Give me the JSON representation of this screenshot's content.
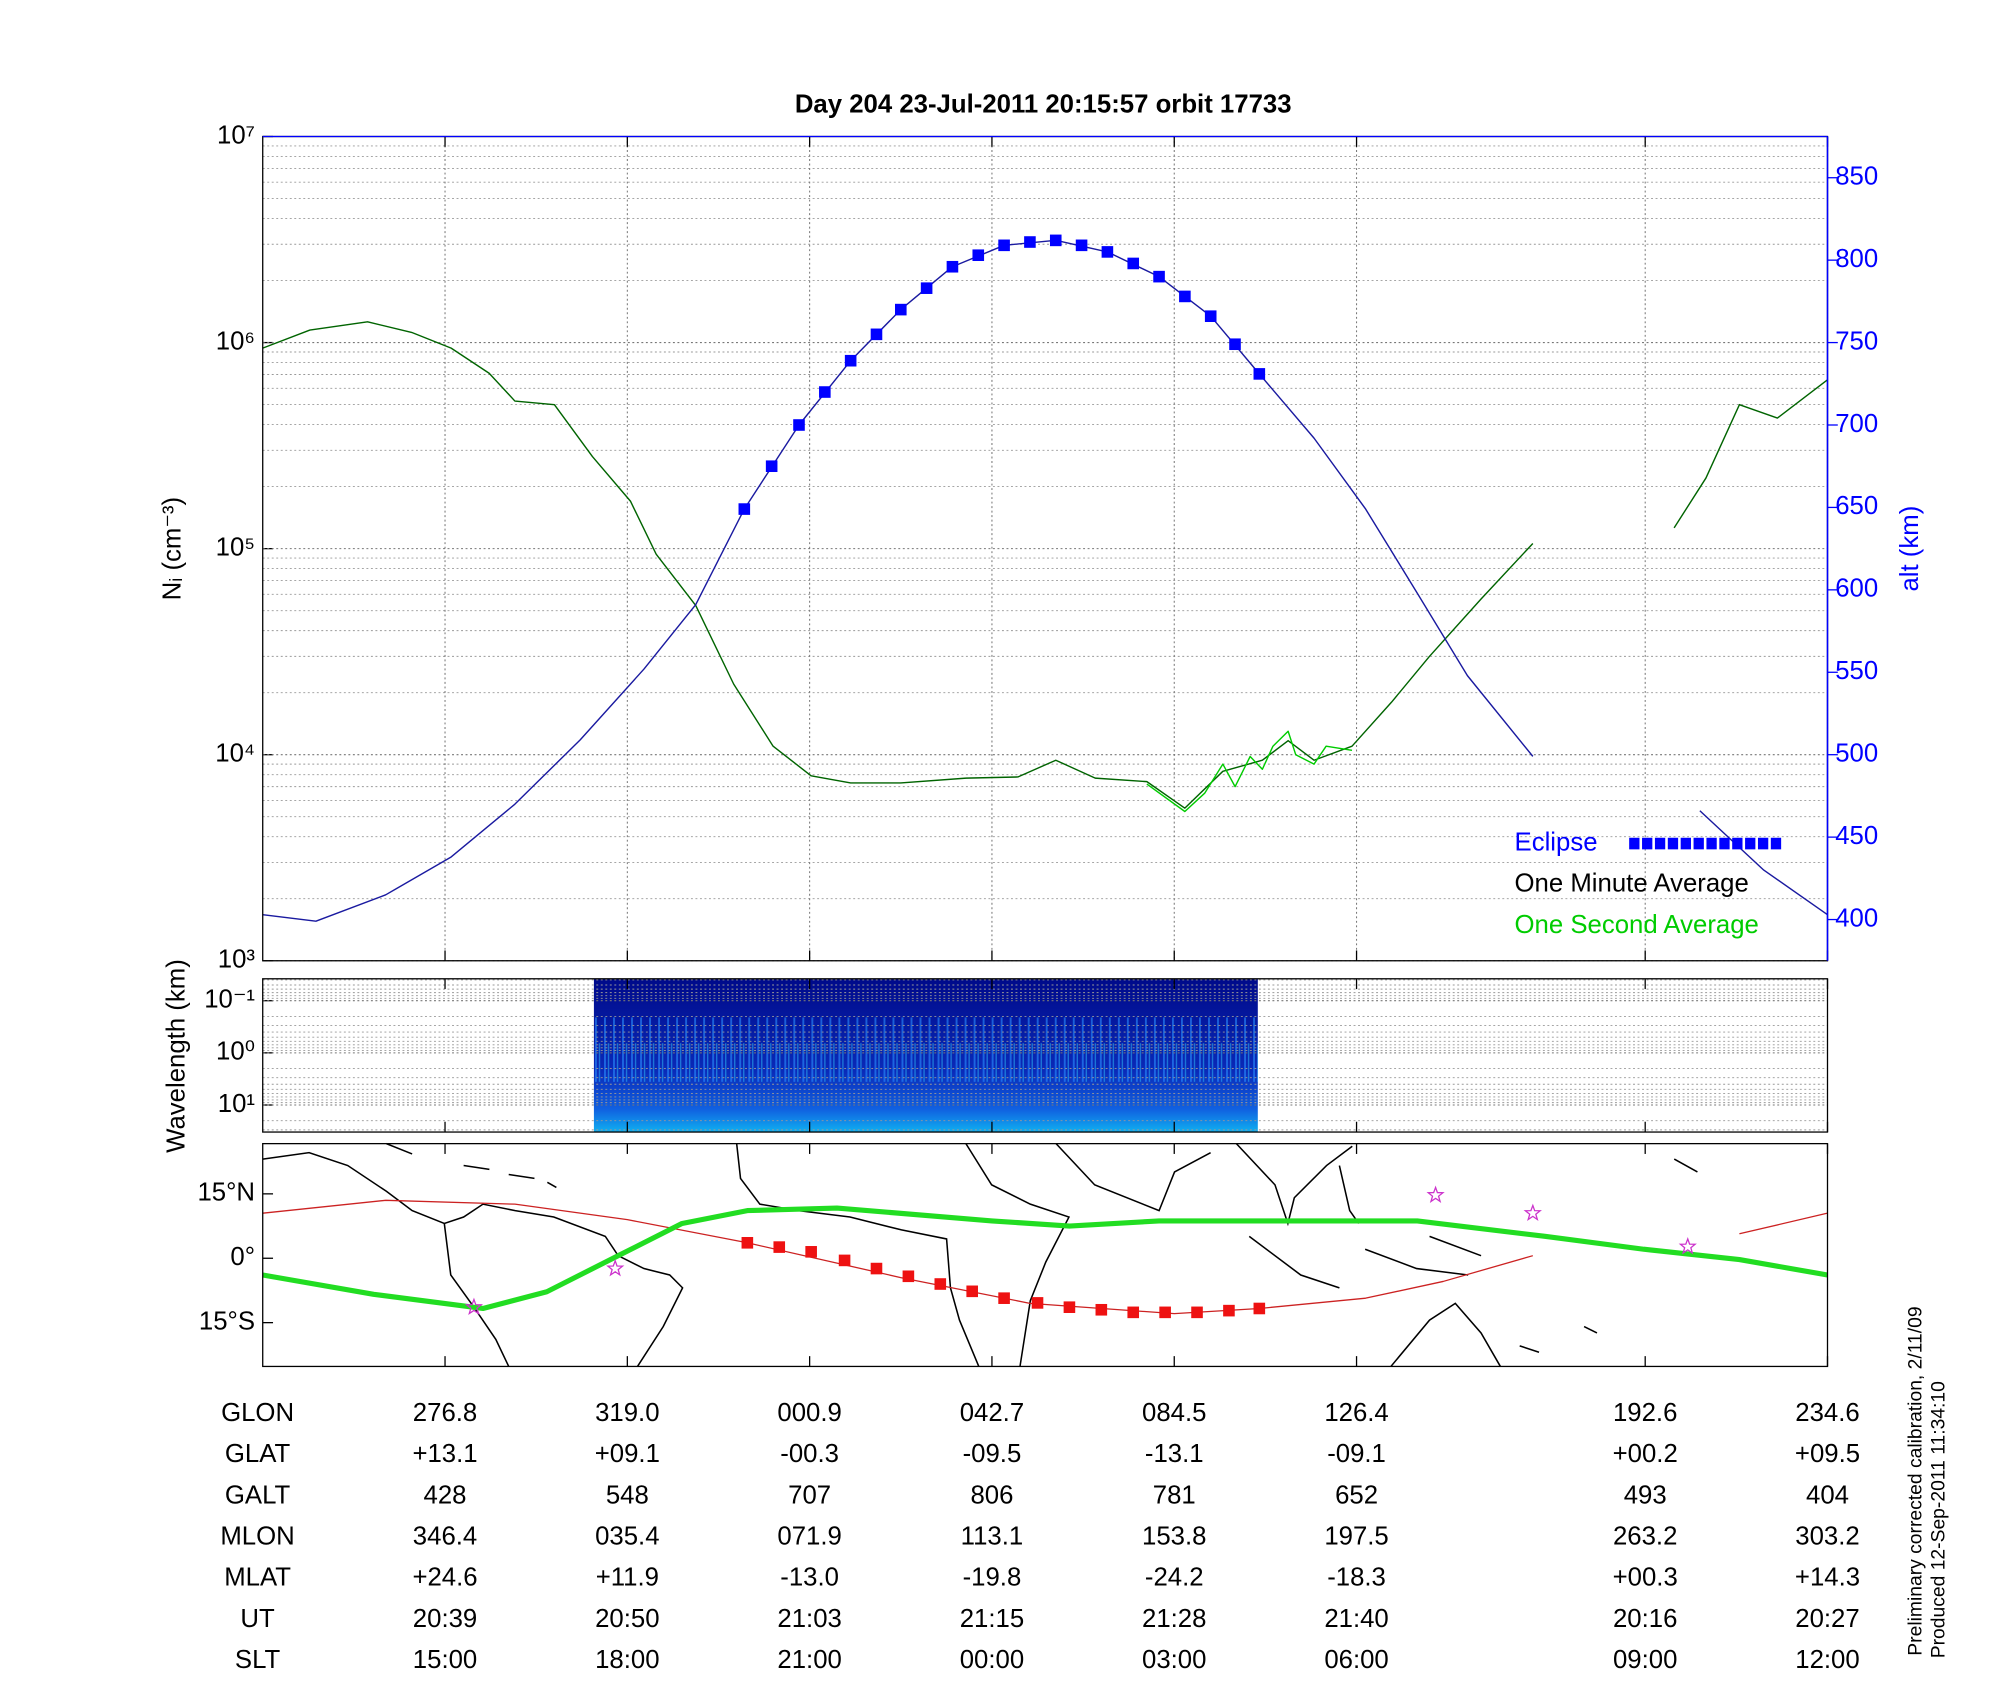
{
  "chart_data": [
    {
      "type": "line",
      "title": "Day 204  23-Jul-2011 20:15:57   orbit 17733",
      "ylabel": "Nᵢ (cm⁻³)",
      "y2label": "alt (km)",
      "xlim": [
        27,
        130
      ],
      "xticks": [
        39,
        51,
        63,
        75,
        87,
        99,
        118,
        130
      ],
      "ylog": true,
      "ylim": [
        1000,
        10000000
      ],
      "yticks": [
        {
          "value": 1000,
          "label": "10³"
        },
        {
          "value": 10000,
          "label": "10⁴"
        },
        {
          "value": 100000,
          "label": "10⁵"
        },
        {
          "value": 1000000,
          "label": "10⁶"
        },
        {
          "value": 10000000,
          "label": "10⁷"
        }
      ],
      "y2lim": [
        375,
        875
      ],
      "y2ticks": [
        400,
        450,
        500,
        550,
        600,
        650,
        700,
        750,
        800,
        850
      ],
      "grid": true,
      "legend": "lower right",
      "series": [
        {
          "name": "Eclipse",
          "color": "#0000ff",
          "axis": "y2",
          "marker": "square",
          "x": [
            58.7,
            60.5,
            62.3,
            64.0,
            65.7,
            67.4,
            69.0,
            70.7,
            72.4,
            74.1,
            75.8,
            77.5,
            79.2,
            80.9,
            82.6,
            84.3,
            86.0,
            87.7,
            89.4,
            91.0,
            92.6
          ],
          "values": [
            649,
            675,
            700,
            720,
            739,
            755,
            770,
            783,
            796,
            803,
            809,
            811,
            812,
            809,
            805,
            798,
            790,
            778,
            766,
            749,
            731
          ]
        },
        {
          "name": "One Minute Average",
          "color": "#006400",
          "legend_color": "#000000",
          "x": [
            27.0,
            30.1,
            33.9,
            36.8,
            39.4,
            41.9,
            43.6,
            46.2,
            48.7,
            51.2,
            52.9,
            55.5,
            58.0,
            60.6,
            63.1,
            65.7,
            69.0,
            73.3,
            76.7,
            79.2,
            81.8,
            85.2,
            87.7,
            90.2,
            92.8,
            94.5,
            96.2,
            98.7,
            101.3,
            103.8,
            107.2,
            110.6,
            117.9,
            119.9,
            122.0,
            124.2,
            126.7,
            130.0
          ],
          "values": [
            940000,
            1150000,
            1260000,
            1120000,
            940000,
            710000,
            520000,
            500000,
            280000,
            170000,
            94000,
            53000,
            22000,
            11000,
            7900,
            7300,
            7300,
            7700,
            7800,
            9400,
            7700,
            7400,
            5500,
            8300,
            9400,
            11700,
            9400,
            11000,
            18000,
            30000,
            57000,
            106000,
            null,
            126000,
            220000,
            500000,
            430000,
            660000
          ]
        },
        {
          "name": "One Second Average",
          "color": "#00cc00",
          "x": [
            85.2,
            87.7,
            89.0,
            90.2,
            91.0,
            92.0,
            92.8,
            93.5,
            94.5,
            95.0,
            96.2,
            97.0,
            98.7
          ],
          "values": [
            7200,
            5300,
            6500,
            9000,
            7000,
            9800,
            8500,
            11000,
            13000,
            10000,
            9000,
            11000,
            10500
          ]
        },
        {
          "color": "#1a1aa0",
          "axis": "y2",
          "x": [
            27.0,
            30.5,
            35.1,
            39.4,
            43.6,
            47.9,
            52.1,
            55.5,
            58.7,
            62.3,
            65.7,
            69.0,
            72.4,
            75.8,
            79.2,
            82.6,
            86.0,
            89.4,
            92.6,
            96.2,
            99.6,
            103.0,
            106.3,
            110.6,
            117.9,
            121.6,
            125.8,
            130.0
          ],
          "values": [
            403,
            399,
            415,
            438,
            470,
            509,
            552,
            591,
            649,
            700,
            739,
            770,
            796,
            809,
            812,
            805,
            790,
            766,
            731,
            692,
            649,
            598,
            548,
            499,
            null,
            466,
            430,
            403
          ]
        }
      ]
    },
    {
      "type": "image",
      "ylabel": "Wavelength (km)",
      "xlim": [
        27,
        130
      ],
      "xticks": [
        39,
        51,
        63,
        75,
        87,
        99,
        118,
        130
      ],
      "ylog": true,
      "yreverse": true,
      "ylim": [
        0.038,
        33
      ],
      "yticks": [
        {
          "value": 0.1,
          "label": "10⁻¹"
        },
        {
          "value": 1,
          "label": "10⁰"
        },
        {
          "value": 10,
          "label": "10¹"
        }
      ],
      "grid": true,
      "image_x": [
        48.8,
        92.5
      ]
    },
    {
      "type": "map",
      "xlim": [
        27,
        130
      ],
      "xticks": [
        39,
        51,
        63,
        75,
        87,
        99,
        118,
        130
      ],
      "ylim": [
        -25.2,
        26.7
      ],
      "yticks": [
        {
          "value": 15,
          "label": "15°N"
        },
        {
          "value": 0,
          "label": "0°"
        },
        {
          "value": -15,
          "label": "15°S"
        }
      ],
      "series": [
        {
          "color": "#cc2222",
          "width": 1,
          "x": [
            27.0,
            35.1,
            43.6,
            51.0,
            58.9,
            69.0,
            77.5,
            87.0,
            92.6,
            99.6,
            104.7,
            110.6,
            117.9,
            124.2,
            130.0
          ],
          "values": [
            10.5,
            13.5,
            12.6,
            9.0,
            3.6,
            -4.5,
            -10.5,
            -12.9,
            -11.7,
            -9.3,
            -5.4,
            0.6,
            null,
            5.7,
            10.5
          ]
        },
        {
          "color": "#22dd22",
          "width": 4,
          "x": [
            27.0,
            34.3,
            41.5,
            45.7,
            50.4,
            54.6,
            58.9,
            64.8,
            75.0,
            80.1,
            86.0,
            94.5,
            103.0,
            111.4,
            117.9,
            124.2,
            130.0
          ],
          "values": [
            -3.9,
            -8.4,
            -11.7,
            -7.8,
            0.6,
            8.1,
            11.1,
            11.7,
            8.7,
            7.5,
            8.7,
            8.7,
            8.7,
            5.1,
            2.1,
            -0.3,
            -3.9
          ]
        },
        {
          "color": "#ee1111",
          "marker": "square",
          "x": [
            58.9,
            61.0,
            63.1,
            65.3,
            67.4,
            69.5,
            71.6,
            73.7,
            75.8,
            78.0,
            80.1,
            82.2,
            84.3,
            86.4,
            88.5,
            90.6,
            92.6
          ],
          "values": [
            3.6,
            2.6,
            1.5,
            -0.5,
            -2.4,
            -4.2,
            -6.0,
            -7.7,
            -9.3,
            -10.4,
            -11.4,
            -12.0,
            -12.6,
            -12.6,
            -12.6,
            -12.2,
            -11.7
          ]
        },
        {
          "color": "#cc33cc",
          "marker": "star",
          "x": [
            40.9,
            50.2,
            104.2,
            110.6,
            120.8
          ],
          "values": [
            -11.4,
            -2.4,
            14.7,
            10.5,
            2.7
          ]
        }
      ]
    }
  ],
  "table": {
    "rows": [
      [
        "GLON",
        "276.8",
        "319.0",
        "000.9",
        "042.7",
        "084.5",
        "126.4",
        "192.6",
        "234.6"
      ],
      [
        "GLAT",
        "+13.1",
        "+09.1",
        "-00.3",
        "-09.5",
        "-13.1",
        "-09.1",
        "+00.2",
        "+09.5"
      ],
      [
        "GALT",
        "428",
        "548",
        "707",
        "806",
        "781",
        "652",
        "493",
        "404"
      ],
      [
        "MLON",
        "346.4",
        "035.4",
        "071.9",
        "113.1",
        "153.8",
        "197.5",
        "263.2",
        "303.2"
      ],
      [
        "MLAT",
        "+24.6",
        "+11.9",
        "-13.0",
        "-19.8",
        "-24.2",
        "-18.3",
        "+00.3",
        "+14.3"
      ],
      [
        "UT",
        "20:39",
        "20:50",
        "21:03",
        "21:15",
        "21:28",
        "21:40",
        "20:16",
        "20:27"
      ],
      [
        "SLT",
        "15:00",
        "18:00",
        "21:00",
        "00:00",
        "03:00",
        "06:00",
        "09:00",
        "12:00"
      ]
    ]
  },
  "notes": [
    "Preliminary corrected calibration, 2/11/09",
    "Produced 12-Sep-2011 11:34:10"
  ]
}
